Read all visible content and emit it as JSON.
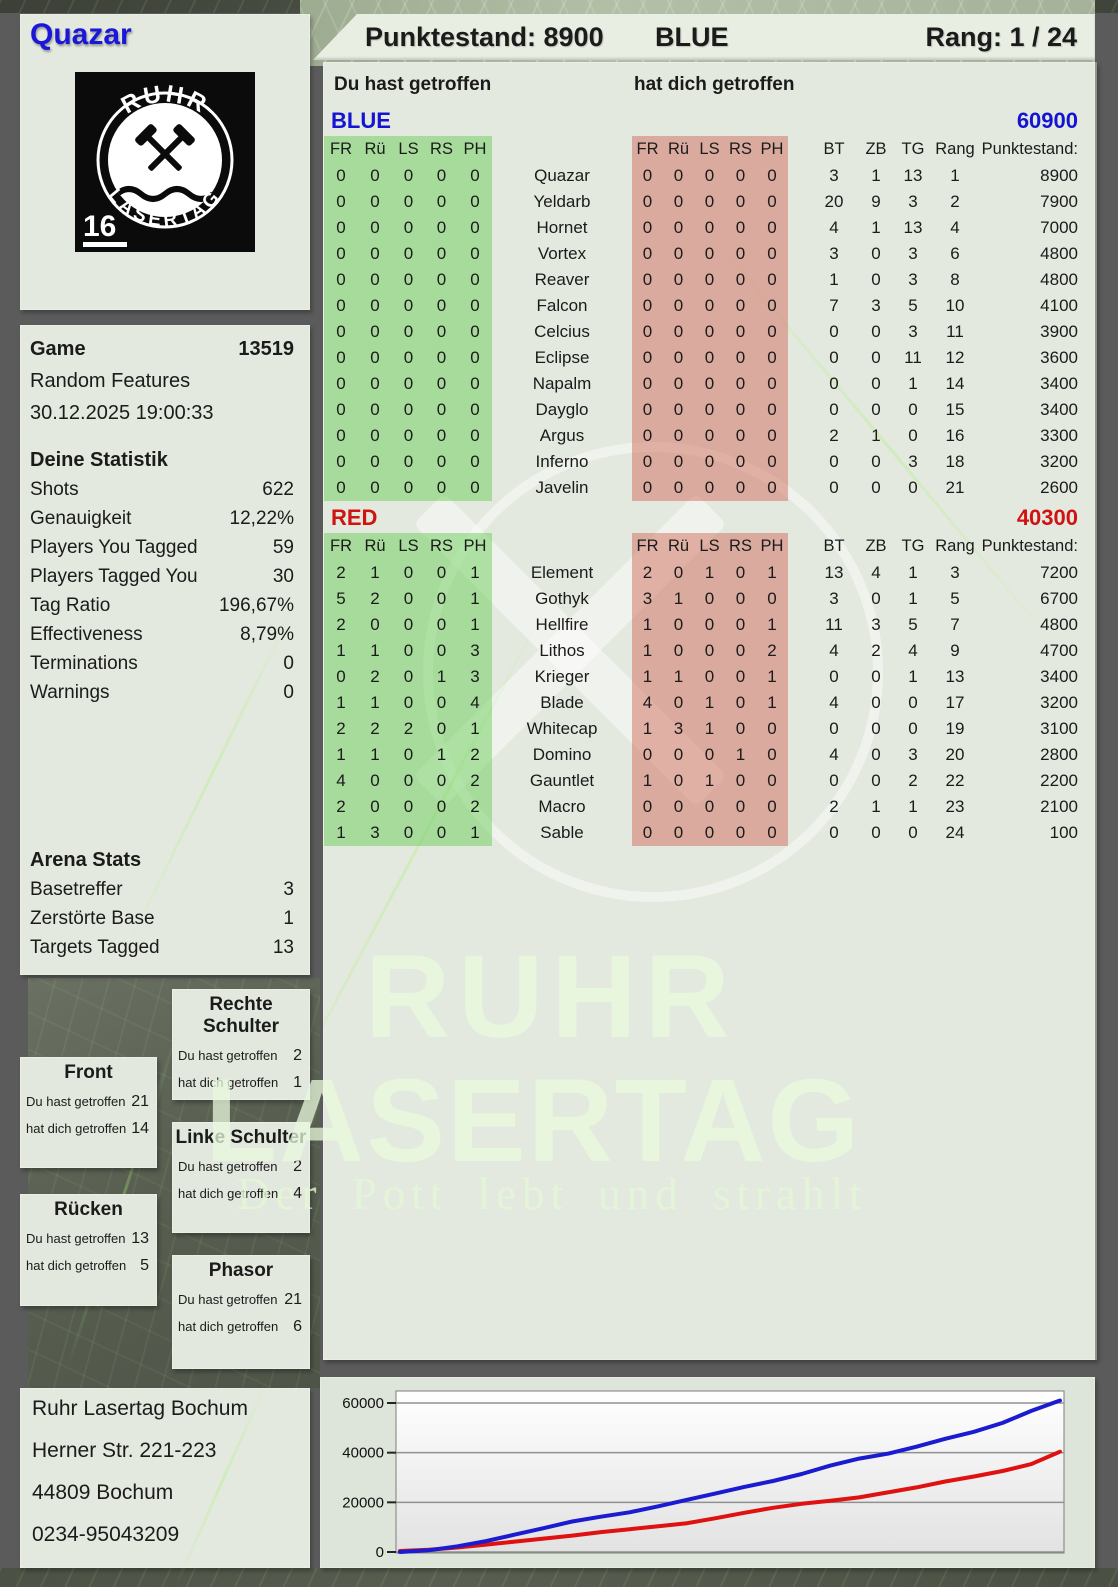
{
  "header": {
    "points": "Punktestand: 8900",
    "team": "BLUE",
    "rank": "Rang: 1 / 24"
  },
  "player": {
    "name": "Quazar"
  },
  "logo": {
    "arc_top": "RUHR",
    "arc_bottom": "LASERTAG",
    "number": "16"
  },
  "hit_labels": {
    "you": "Du hast getroffen",
    "them": "hat dich getroffen"
  },
  "game_info": {
    "label": "Game",
    "value": "13519",
    "mode": "Random Features",
    "datetime": "30.12.2025 19:00:33"
  },
  "your_stats": {
    "title": "Deine Statistik",
    "rows": [
      {
        "label": "Shots",
        "value": "622"
      },
      {
        "label": "Genauigkeit",
        "value": "12,22%"
      },
      {
        "label": "Players You Tagged",
        "value": "59"
      },
      {
        "label": "Players Tagged You",
        "value": "30"
      },
      {
        "label": "Tag Ratio",
        "value": "196,67%"
      },
      {
        "label": "Effectiveness",
        "value": "8,79%"
      },
      {
        "label": "Terminations",
        "value": "0"
      },
      {
        "label": "Warnings",
        "value": "0"
      }
    ]
  },
  "arena_stats": {
    "title": "Arena Stats",
    "rows": [
      {
        "label": "Basetreffer",
        "value": "3"
      },
      {
        "label": "Zerstörte Base",
        "value": "1"
      },
      {
        "label": "Targets Tagged",
        "value": "13"
      }
    ]
  },
  "body_parts": [
    {
      "title": "Front",
      "you": "21",
      "them": "14"
    },
    {
      "title": "Rücken",
      "you": "13",
      "them": "5"
    },
    {
      "title": "Rechte Schulter",
      "you": "2",
      "them": "1"
    },
    {
      "title": "Linke Schulter",
      "you": "2",
      "them": "4"
    },
    {
      "title": "Phasor",
      "you": "21",
      "them": "6"
    }
  ],
  "teams": [
    {
      "name": "BLUE",
      "color": "#1414d2",
      "total": "60900",
      "col_headers": [
        "FR",
        "Rü",
        "LS",
        "RS",
        "PH"
      ],
      "stat_headers": [
        "BT",
        "ZB",
        "TG",
        "Rang",
        "Punktestand:"
      ],
      "rows": [
        {
          "name": "Quazar",
          "you": [
            "0",
            "0",
            "0",
            "0",
            "0"
          ],
          "them": [
            "0",
            "0",
            "0",
            "0",
            "0"
          ],
          "bt": "3",
          "zb": "1",
          "tg": "13",
          "rang": "1",
          "points": "8900"
        },
        {
          "name": "Yeldarb",
          "you": [
            "0",
            "0",
            "0",
            "0",
            "0"
          ],
          "them": [
            "0",
            "0",
            "0",
            "0",
            "0"
          ],
          "bt": "20",
          "zb": "9",
          "tg": "3",
          "rang": "2",
          "points": "7900"
        },
        {
          "name": "Hornet",
          "you": [
            "0",
            "0",
            "0",
            "0",
            "0"
          ],
          "them": [
            "0",
            "0",
            "0",
            "0",
            "0"
          ],
          "bt": "4",
          "zb": "1",
          "tg": "13",
          "rang": "4",
          "points": "7000"
        },
        {
          "name": "Vortex",
          "you": [
            "0",
            "0",
            "0",
            "0",
            "0"
          ],
          "them": [
            "0",
            "0",
            "0",
            "0",
            "0"
          ],
          "bt": "3",
          "zb": "0",
          "tg": "3",
          "rang": "6",
          "points": "4800"
        },
        {
          "name": "Reaver",
          "you": [
            "0",
            "0",
            "0",
            "0",
            "0"
          ],
          "them": [
            "0",
            "0",
            "0",
            "0",
            "0"
          ],
          "bt": "1",
          "zb": "0",
          "tg": "3",
          "rang": "8",
          "points": "4800"
        },
        {
          "name": "Falcon",
          "you": [
            "0",
            "0",
            "0",
            "0",
            "0"
          ],
          "them": [
            "0",
            "0",
            "0",
            "0",
            "0"
          ],
          "bt": "7",
          "zb": "3",
          "tg": "5",
          "rang": "10",
          "points": "4100"
        },
        {
          "name": "Celcius",
          "you": [
            "0",
            "0",
            "0",
            "0",
            "0"
          ],
          "them": [
            "0",
            "0",
            "0",
            "0",
            "0"
          ],
          "bt": "0",
          "zb": "0",
          "tg": "3",
          "rang": "11",
          "points": "3900"
        },
        {
          "name": "Eclipse",
          "you": [
            "0",
            "0",
            "0",
            "0",
            "0"
          ],
          "them": [
            "0",
            "0",
            "0",
            "0",
            "0"
          ],
          "bt": "0",
          "zb": "0",
          "tg": "11",
          "rang": "12",
          "points": "3600"
        },
        {
          "name": "Napalm",
          "you": [
            "0",
            "0",
            "0",
            "0",
            "0"
          ],
          "them": [
            "0",
            "0",
            "0",
            "0",
            "0"
          ],
          "bt": "0",
          "zb": "0",
          "tg": "1",
          "rang": "14",
          "points": "3400"
        },
        {
          "name": "Dayglo",
          "you": [
            "0",
            "0",
            "0",
            "0",
            "0"
          ],
          "them": [
            "0",
            "0",
            "0",
            "0",
            "0"
          ],
          "bt": "0",
          "zb": "0",
          "tg": "0",
          "rang": "15",
          "points": "3400"
        },
        {
          "name": "Argus",
          "you": [
            "0",
            "0",
            "0",
            "0",
            "0"
          ],
          "them": [
            "0",
            "0",
            "0",
            "0",
            "0"
          ],
          "bt": "2",
          "zb": "1",
          "tg": "0",
          "rang": "16",
          "points": "3300"
        },
        {
          "name": "Inferno",
          "you": [
            "0",
            "0",
            "0",
            "0",
            "0"
          ],
          "them": [
            "0",
            "0",
            "0",
            "0",
            "0"
          ],
          "bt": "0",
          "zb": "0",
          "tg": "3",
          "rang": "18",
          "points": "3200"
        },
        {
          "name": "Javelin",
          "you": [
            "0",
            "0",
            "0",
            "0",
            "0"
          ],
          "them": [
            "0",
            "0",
            "0",
            "0",
            "0"
          ],
          "bt": "0",
          "zb": "0",
          "tg": "0",
          "rang": "21",
          "points": "2600"
        }
      ]
    },
    {
      "name": "RED",
      "color": "#cf1212",
      "total": "40300",
      "col_headers": [
        "FR",
        "Rü",
        "LS",
        "RS",
        "PH"
      ],
      "stat_headers": [
        "BT",
        "ZB",
        "TG",
        "Rang",
        "Punktestand:"
      ],
      "rows": [
        {
          "name": "Element",
          "you": [
            "2",
            "1",
            "0",
            "0",
            "1"
          ],
          "them": [
            "2",
            "0",
            "1",
            "0",
            "1"
          ],
          "bt": "13",
          "zb": "4",
          "tg": "1",
          "rang": "3",
          "points": "7200"
        },
        {
          "name": "Gothyk",
          "you": [
            "5",
            "2",
            "0",
            "0",
            "1"
          ],
          "them": [
            "3",
            "1",
            "0",
            "0",
            "0"
          ],
          "bt": "3",
          "zb": "0",
          "tg": "1",
          "rang": "5",
          "points": "6700"
        },
        {
          "name": "Hellfire",
          "you": [
            "2",
            "0",
            "0",
            "0",
            "1"
          ],
          "them": [
            "1",
            "0",
            "0",
            "0",
            "1"
          ],
          "bt": "11",
          "zb": "3",
          "tg": "5",
          "rang": "7",
          "points": "4800"
        },
        {
          "name": "Lithos",
          "you": [
            "1",
            "1",
            "0",
            "0",
            "3"
          ],
          "them": [
            "1",
            "0",
            "0",
            "0",
            "2"
          ],
          "bt": "4",
          "zb": "2",
          "tg": "4",
          "rang": "9",
          "points": "4700"
        },
        {
          "name": "Krieger",
          "you": [
            "0",
            "2",
            "0",
            "1",
            "3"
          ],
          "them": [
            "1",
            "1",
            "0",
            "0",
            "1"
          ],
          "bt": "0",
          "zb": "0",
          "tg": "1",
          "rang": "13",
          "points": "3400"
        },
        {
          "name": "Blade",
          "you": [
            "1",
            "1",
            "0",
            "0",
            "4"
          ],
          "them": [
            "4",
            "0",
            "1",
            "0",
            "1"
          ],
          "bt": "4",
          "zb": "0",
          "tg": "0",
          "rang": "17",
          "points": "3200"
        },
        {
          "name": "Whitecap",
          "you": [
            "2",
            "2",
            "2",
            "0",
            "1"
          ],
          "them": [
            "1",
            "3",
            "1",
            "0",
            "0"
          ],
          "bt": "0",
          "zb": "0",
          "tg": "0",
          "rang": "19",
          "points": "3100"
        },
        {
          "name": "Domino",
          "you": [
            "1",
            "1",
            "0",
            "1",
            "2"
          ],
          "them": [
            "0",
            "0",
            "0",
            "1",
            "0"
          ],
          "bt": "4",
          "zb": "0",
          "tg": "3",
          "rang": "20",
          "points": "2800"
        },
        {
          "name": "Gauntlet",
          "you": [
            "4",
            "0",
            "0",
            "0",
            "2"
          ],
          "them": [
            "1",
            "0",
            "1",
            "0",
            "0"
          ],
          "bt": "0",
          "zb": "0",
          "tg": "2",
          "rang": "22",
          "points": "2200"
        },
        {
          "name": "Macro",
          "you": [
            "2",
            "0",
            "0",
            "0",
            "2"
          ],
          "them": [
            "0",
            "0",
            "0",
            "0",
            "0"
          ],
          "bt": "2",
          "zb": "1",
          "tg": "1",
          "rang": "23",
          "points": "2100"
        },
        {
          "name": "Sable",
          "you": [
            "1",
            "3",
            "0",
            "0",
            "1"
          ],
          "them": [
            "0",
            "0",
            "0",
            "0",
            "0"
          ],
          "bt": "0",
          "zb": "0",
          "tg": "0",
          "rang": "24",
          "points": "100"
        }
      ]
    }
  ],
  "watermark": {
    "line1": "RUHR",
    "line2": "LASERTAG",
    "tagline": "Der Pott lebt und strahlt"
  },
  "address": {
    "lines": [
      "Ruhr Lasertag Bochum",
      "Herner Str. 221-223",
      "44809 Bochum",
      "0234-95043209"
    ]
  },
  "chart_data": {
    "type": "line",
    "title": "",
    "xlabel": "",
    "ylabel": "",
    "yticks": [
      0,
      20000,
      40000,
      60000
    ],
    "ylim": [
      0,
      63000
    ],
    "grid": true,
    "legend": false,
    "series": [
      {
        "name": "BLUE",
        "color": "#1b1bd0",
        "values": [
          0,
          700,
          2300,
          4400,
          7000,
          9600,
          12300,
          14200,
          16000,
          18400,
          21000,
          23600,
          26200,
          28600,
          31400,
          34800,
          37600,
          39600,
          42400,
          45600,
          48400,
          52000,
          56800,
          61000
        ]
      },
      {
        "name": "RED",
        "color": "#df1111",
        "values": [
          400,
          900,
          1800,
          3000,
          4200,
          5400,
          6600,
          8000,
          9200,
          10400,
          11600,
          13600,
          15800,
          17800,
          19400,
          20600,
          22000,
          24000,
          26000,
          28400,
          30400,
          32600,
          35400,
          40400
        ]
      }
    ]
  }
}
